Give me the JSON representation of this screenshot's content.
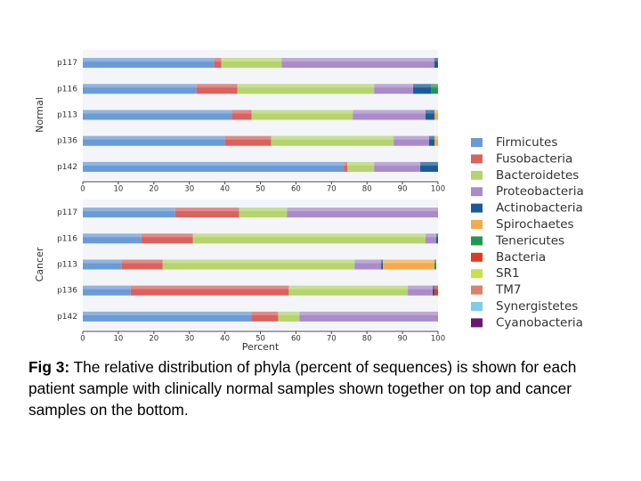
{
  "chart_data": [
    {
      "type": "stacked-bar-horizontal",
      "ylabel": "Normal",
      "categories": [
        "p117",
        "p116",
        "p113",
        "p136",
        "p142"
      ],
      "xlim": [
        0,
        100
      ],
      "xticks": [
        0,
        10,
        20,
        30,
        40,
        50,
        60,
        70,
        80,
        90,
        100
      ],
      "series": [
        {
          "name": "Firmicutes",
          "color": "#6b9bd6",
          "values": [
            37,
            32,
            42,
            40,
            73.5
          ]
        },
        {
          "name": "Fusobacteria",
          "color": "#d9625e",
          "values": [
            2,
            11.5,
            5.5,
            13,
            1
          ]
        },
        {
          "name": "Bacteroidetes",
          "color": "#b5d46c",
          "values": [
            17,
            38.5,
            28.5,
            34.5,
            7.5
          ]
        },
        {
          "name": "Proteobacteria",
          "color": "#a98bc8",
          "values": [
            43,
            11,
            20.5,
            10,
            13
          ]
        },
        {
          "name": "Actinobacteria",
          "color": "#1b5a98",
          "values": [
            1,
            5,
            2.5,
            1.5,
            5
          ]
        },
        {
          "name": "Spirochaetes",
          "color": "#f4aa4e",
          "values": [
            0,
            0,
            1,
            1,
            0
          ]
        },
        {
          "name": "Tenericutes",
          "color": "#1e9a4a",
          "values": [
            0,
            2,
            0,
            0,
            0
          ]
        },
        {
          "name": "Bacteria",
          "color": "#e03a1e",
          "values": [
            0,
            0,
            0,
            0,
            0
          ]
        },
        {
          "name": "SR1",
          "color": "#c8e04a",
          "values": [
            0,
            0,
            0,
            0,
            0
          ]
        },
        {
          "name": "TM7",
          "color": "#d8806a",
          "values": [
            0,
            0,
            0,
            0,
            0
          ]
        },
        {
          "name": "Synergistetes",
          "color": "#7fcbe8",
          "values": [
            0,
            0,
            0,
            0,
            0
          ]
        },
        {
          "name": "Cyanobacteria",
          "color": "#6a1a6e",
          "values": [
            0,
            0,
            0,
            0,
            0
          ]
        }
      ]
    },
    {
      "type": "stacked-bar-horizontal",
      "ylabel": "Cancer",
      "xlabel": "Percent",
      "categories": [
        "p117",
        "p116",
        "p113",
        "p136",
        "p142"
      ],
      "xlim": [
        0,
        100
      ],
      "xticks": [
        0,
        10,
        20,
        30,
        40,
        50,
        60,
        70,
        80,
        90,
        100
      ],
      "series": [
        {
          "values": [
            26,
            16.5,
            11,
            13.5,
            47.5
          ]
        },
        {
          "values": [
            18,
            14.5,
            11.5,
            44.5,
            7.5
          ]
        },
        {
          "values": [
            13.5,
            65.5,
            54,
            33.5,
            6
          ]
        },
        {
          "values": [
            42.5,
            3,
            7.5,
            7,
            39
          ]
        },
        {
          "values": [
            0,
            0.5,
            0.5,
            0.5,
            0
          ]
        },
        {
          "values": [
            0,
            0,
            14.5,
            0,
            0
          ]
        },
        {
          "values": [
            0,
            0,
            0.5,
            0,
            0
          ]
        },
        {
          "values": [
            0,
            0,
            0,
            1,
            0
          ]
        },
        {
          "values": [
            0,
            0,
            0,
            0,
            0
          ]
        },
        {
          "values": [
            0,
            0,
            0,
            0,
            0
          ]
        },
        {
          "values": [
            0,
            0,
            0,
            0,
            0
          ]
        },
        {
          "values": [
            0,
            0,
            0,
            0,
            0
          ]
        }
      ]
    }
  ],
  "caption": {
    "label": "Fig 3:",
    "text": " The relative distribution of phyla (percent of sequences) is shown for each patient sample with clinically normal samples shown together on top and cancer samples on the bottom."
  }
}
